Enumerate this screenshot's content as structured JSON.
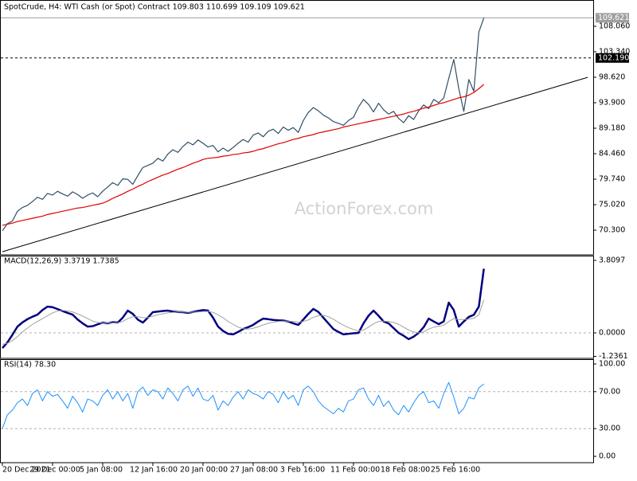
{
  "chart_data": [
    {
      "type": "line",
      "title": "SpotCrude, H4:  WTI Cash (or Spot) Contract  109.803 110.699 109.109 109.621",
      "watermark": "ActionForex.com",
      "xlim": [
        0,
        117.8
      ],
      "ylim": [
        65.88,
        112.48
      ],
      "yticks": [
        {
          "value": 70.3,
          "label": "70.300"
        },
        {
          "value": 75.02,
          "label": "75.020"
        },
        {
          "value": 79.74,
          "label": "79.740"
        },
        {
          "value": 84.46,
          "label": "84.460"
        },
        {
          "value": 89.18,
          "label": "89.180"
        },
        {
          "value": 93.9,
          "label": "93.900"
        },
        {
          "value": 98.62,
          "label": "98.620"
        },
        {
          "value": 103.34,
          "label": "103.340"
        },
        {
          "value": 108.06,
          "label": "108.060"
        }
      ],
      "levels": [
        {
          "value": 109.621,
          "label": "109.621",
          "color": "#a0a0a0",
          "dashed": false
        },
        {
          "value": 102.19,
          "label": "102.190",
          "color": "#000000",
          "dashed": true
        }
      ],
      "trendline": {
        "x": [
          0,
          116.7
        ],
        "y": [
          66.3,
          98.6
        ],
        "color": "#000000"
      },
      "series": [
        {
          "color": "#2f4f65",
          "line_width": 1.2,
          "values": [
            70.2,
            71.5,
            72.0,
            73.8,
            74.5,
            74.9,
            75.6,
            76.4,
            76.0,
            77.1,
            76.8,
            77.5,
            77.0,
            76.6,
            77.4,
            76.9,
            76.2,
            76.8,
            77.2,
            76.5,
            77.5,
            78.3,
            79.1,
            78.6,
            79.8,
            79.7,
            78.8,
            80.4,
            81.9,
            82.3,
            82.7,
            83.6,
            83.1,
            84.4,
            85.2,
            84.7,
            85.8,
            86.6,
            86.1,
            87.0,
            86.4,
            85.7,
            86.0,
            84.8,
            85.5,
            84.9,
            85.6,
            86.4,
            87.1,
            86.6,
            87.9,
            88.3,
            87.6,
            88.6,
            89.0,
            88.2,
            89.4,
            88.8,
            89.3,
            88.4,
            90.6,
            92.1,
            93.0,
            92.4,
            91.6,
            91.1,
            90.4,
            90.1,
            89.7,
            90.6,
            91.2,
            93.1,
            94.5,
            93.6,
            92.2,
            93.8,
            92.6,
            91.8,
            92.3,
            91.0,
            90.2,
            91.5,
            90.8,
            92.4,
            93.5,
            92.8,
            94.5,
            93.9,
            94.8,
            98.4,
            101.9,
            96.5,
            92.3,
            98.2,
            96.0,
            107.0,
            109.621
          ]
        },
        {
          "color": "#e00000",
          "line_width": 1.2,
          "values": [
            71.2,
            71.4,
            71.6,
            71.9,
            72.1,
            72.3,
            72.5,
            72.7,
            72.9,
            73.2,
            73.4,
            73.6,
            73.8,
            74.0,
            74.2,
            74.4,
            74.5,
            74.7,
            74.9,
            75.1,
            75.3,
            75.7,
            76.2,
            76.6,
            77.0,
            77.5,
            77.9,
            78.4,
            78.8,
            79.3,
            79.7,
            80.1,
            80.5,
            80.8,
            81.2,
            81.6,
            81.9,
            82.3,
            82.7,
            83.0,
            83.4,
            83.6,
            83.7,
            83.8,
            84.0,
            84.1,
            84.3,
            84.4,
            84.6,
            84.7,
            84.9,
            85.2,
            85.4,
            85.7,
            86.0,
            86.3,
            86.5,
            86.8,
            87.1,
            87.3,
            87.6,
            87.8,
            88.0,
            88.3,
            88.5,
            88.7,
            88.9,
            89.1,
            89.4,
            89.6,
            89.8,
            90.0,
            90.2,
            90.4,
            90.6,
            90.8,
            91.0,
            91.2,
            91.4,
            91.6,
            91.8,
            92.1,
            92.3,
            92.6,
            92.9,
            93.1,
            93.4,
            93.7,
            93.9,
            94.2,
            94.5,
            94.8,
            95.0,
            95.3,
            95.8,
            96.5,
            97.3
          ]
        }
      ]
    },
    {
      "type": "line",
      "title": "MACD(12,26,9) 3.3719 1.7385",
      "xlim": [
        0,
        117.8
      ],
      "ylim": [
        -1.298,
        4.019
      ],
      "yticks": [
        3.8097,
        {
          "value": 0,
          "label": "0.0000"
        },
        -1.2361
      ],
      "hlines": [
        0
      ],
      "series": [
        {
          "color": "#000080",
          "line_width": 2.5,
          "values": [
            -0.8,
            -0.5,
            -0.1,
            0.33,
            0.55,
            0.72,
            0.85,
            0.96,
            1.2,
            1.38,
            1.35,
            1.25,
            1.15,
            1.05,
            0.96,
            0.7,
            0.5,
            0.33,
            0.35,
            0.45,
            0.54,
            0.5,
            0.56,
            0.54,
            0.8,
            1.17,
            1.0,
            0.7,
            0.54,
            0.8,
            1.09,
            1.12,
            1.15,
            1.17,
            1.12,
            1.1,
            1.09,
            1.05,
            1.1,
            1.15,
            1.2,
            1.17,
            0.8,
            0.33,
            0.1,
            -0.05,
            -0.08,
            0.05,
            0.2,
            0.3,
            0.42,
            0.6,
            0.75,
            0.72,
            0.68,
            0.66,
            0.65,
            0.6,
            0.5,
            0.42,
            0.7,
            1.0,
            1.26,
            1.1,
            0.8,
            0.5,
            0.2,
            0.05,
            -0.08,
            -0.05,
            -0.02,
            0,
            0.5,
            0.9,
            1.17,
            0.9,
            0.6,
            0.5,
            0.25,
            0,
            -0.15,
            -0.33,
            -0.2,
            0,
            0.3,
            0.75,
            0.6,
            0.46,
            0.6,
            1.59,
            1.2,
            0.33,
            0.6,
            0.84,
            0.95,
            1.38,
            3.3719
          ]
        },
        {
          "color": "#a0a0a0",
          "line_width": 1,
          "values": [
            -0.6,
            -0.55,
            -0.4,
            -0.2,
            0.05,
            0.25,
            0.45,
            0.6,
            0.75,
            0.9,
            1.05,
            1.15,
            1.18,
            1.15,
            1.1,
            1.0,
            0.88,
            0.75,
            0.62,
            0.55,
            0.52,
            0.52,
            0.52,
            0.53,
            0.6,
            0.75,
            0.85,
            0.85,
            0.8,
            0.8,
            0.88,
            0.95,
            1.0,
            1.05,
            1.08,
            1.1,
            1.1,
            1.09,
            1.09,
            1.1,
            1.12,
            1.13,
            1.08,
            0.95,
            0.8,
            0.6,
            0.45,
            0.3,
            0.22,
            0.2,
            0.24,
            0.32,
            0.42,
            0.5,
            0.56,
            0.6,
            0.62,
            0.62,
            0.6,
            0.56,
            0.6,
            0.68,
            0.82,
            0.9,
            0.92,
            0.85,
            0.72,
            0.55,
            0.4,
            0.28,
            0.18,
            0.1,
            0.15,
            0.3,
            0.48,
            0.6,
            0.62,
            0.6,
            0.55,
            0.45,
            0.3,
            0.15,
            0.05,
            0.0,
            0.05,
            0.2,
            0.3,
            0.35,
            0.4,
            0.6,
            0.75,
            0.7,
            0.7,
            0.72,
            0.77,
            0.95,
            1.7385
          ]
        }
      ]
    },
    {
      "type": "line",
      "title": "RSI(14) 78.30",
      "xlim": [
        0,
        117.8
      ],
      "ylim": [
        -6.0,
        104.3
      ],
      "yticks": [
        {
          "value": 100,
          "label": "100.00"
        },
        {
          "value": 70,
          "label": "70.00"
        },
        {
          "value": 30,
          "label": "30.00"
        },
        {
          "value": 0,
          "label": "0.00"
        }
      ],
      "hlines": [
        70,
        30
      ],
      "categories": [
        "20 Dec 2021",
        null,
        null,
        null,
        null,
        null,
        null,
        null,
        null,
        null,
        "29 Dec 00:00",
        null,
        null,
        null,
        null,
        null,
        null,
        null,
        null,
        null,
        "5 Jan 08:00",
        null,
        null,
        null,
        null,
        null,
        null,
        null,
        null,
        null,
        "12 Jan 16:00",
        null,
        null,
        null,
        null,
        null,
        null,
        null,
        null,
        null,
        "20 Jan 00:00",
        null,
        null,
        null,
        null,
        null,
        null,
        null,
        null,
        null,
        "27 Jan 08:00",
        null,
        null,
        null,
        null,
        null,
        null,
        null,
        null,
        null,
        "3 Feb 16:00",
        null,
        null,
        null,
        null,
        null,
        null,
        null,
        null,
        null,
        "11 Feb 00:00",
        null,
        null,
        null,
        null,
        null,
        null,
        null,
        null,
        null,
        "18 Feb 08:00",
        null,
        null,
        null,
        null,
        null,
        null,
        null,
        null,
        null,
        "25 Feb 16:00",
        null,
        null,
        null,
        null,
        null,
        null
      ],
      "series": [
        {
          "color": "#1e90ff",
          "line_width": 1,
          "values": [
            30,
            45,
            50,
            58,
            62,
            55,
            68,
            72,
            60,
            70,
            65,
            67,
            60,
            52,
            65,
            58,
            48,
            62,
            60,
            55,
            66,
            72,
            62,
            70,
            60,
            68,
            52,
            70,
            75,
            66,
            72,
            70,
            62,
            74,
            68,
            60,
            72,
            76,
            65,
            74,
            62,
            60,
            66,
            50,
            60,
            55,
            64,
            70,
            62,
            72,
            68,
            66,
            62,
            70,
            67,
            58,
            70,
            62,
            66,
            55,
            72,
            76,
            70,
            60,
            54,
            50,
            46,
            52,
            48,
            60,
            62,
            72,
            74,
            62,
            55,
            66,
            54,
            60,
            50,
            45,
            55,
            48,
            58,
            66,
            70,
            58,
            60,
            52,
            68,
            80,
            64,
            46,
            52,
            64,
            62,
            74,
            78.3
          ]
        }
      ]
    }
  ]
}
